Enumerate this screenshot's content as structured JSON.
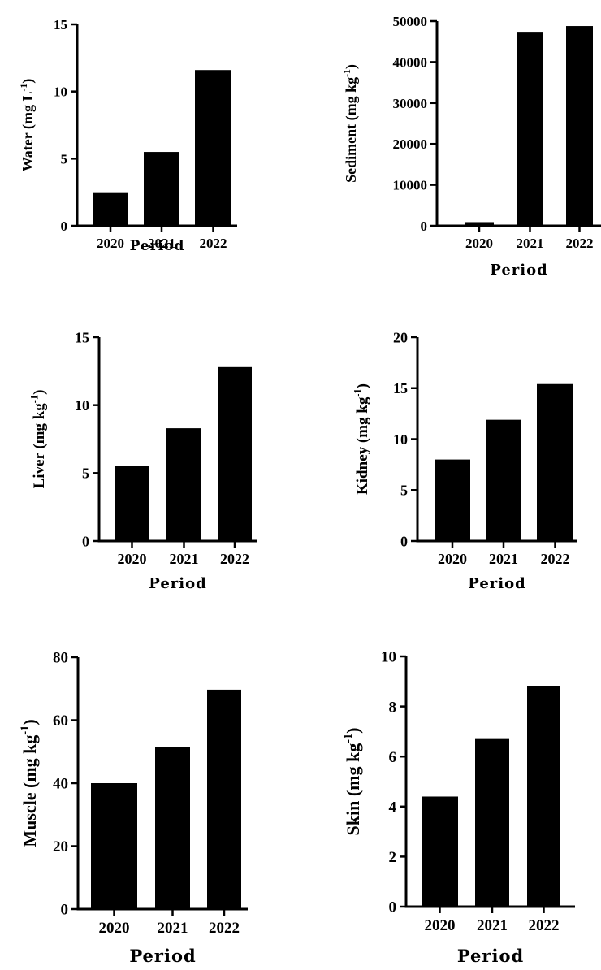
{
  "chart_data": [
    {
      "type": "bar",
      "categories": [
        "2020",
        "2021",
        "2022"
      ],
      "values": [
        2.5,
        5.5,
        11.6
      ],
      "ylim": [
        0,
        15
      ],
      "yticks": [
        0,
        5,
        10,
        15
      ],
      "xlabel": "Period",
      "ylabel": {
        "main": "Water (mg L",
        "sup": "-1",
        "tail": ")"
      }
    },
    {
      "type": "bar",
      "categories": [
        "2020",
        "2021",
        "2022"
      ],
      "values": [
        900,
        47200,
        48800
      ],
      "ylim": [
        0,
        50000
      ],
      "yticks": [
        0,
        10000,
        20000,
        30000,
        40000,
        50000
      ],
      "xlabel": "Period",
      "ylabel": {
        "main": "Sediment (mg kg",
        "sup": "-1",
        "tail": ")"
      }
    },
    {
      "type": "bar",
      "categories": [
        "2020",
        "2021",
        "2022"
      ],
      "values": [
        5.5,
        8.3,
        12.8
      ],
      "ylim": [
        0,
        15
      ],
      "yticks": [
        0,
        5,
        10,
        15
      ],
      "xlabel": "Period",
      "ylabel": {
        "main": "Liver (mg kg",
        "sup": "-1",
        "tail": ")"
      }
    },
    {
      "type": "bar",
      "categories": [
        "2020",
        "2021",
        "2022"
      ],
      "values": [
        8.0,
        11.9,
        15.4
      ],
      "ylim": [
        0,
        20
      ],
      "yticks": [
        0,
        5,
        10,
        15,
        20
      ],
      "xlabel": "Period",
      "ylabel": {
        "main": "Kidney (mg kg",
        "sup": "-1",
        "tail": ")"
      }
    },
    {
      "type": "bar",
      "categories": [
        "2020",
        "2021",
        "2022"
      ],
      "values": [
        40,
        51.5,
        69.7
      ],
      "ylim": [
        0,
        80
      ],
      "yticks": [
        0,
        20,
        40,
        60,
        80
      ],
      "xlabel": "Period",
      "ylabel": {
        "main": "Muscle (mg kg",
        "sup": "-1",
        "tail": ")"
      }
    },
    {
      "type": "bar",
      "categories": [
        "2020",
        "2021",
        "2022"
      ],
      "values": [
        4.4,
        6.7,
        8.8
      ],
      "ylim": [
        0,
        10
      ],
      "yticks": [
        0,
        2,
        4,
        6,
        8,
        10
      ],
      "xlabel": "Period",
      "ylabel": {
        "main": "Skin (mg kg",
        "sup": "-1",
        "tail": ")"
      }
    }
  ]
}
